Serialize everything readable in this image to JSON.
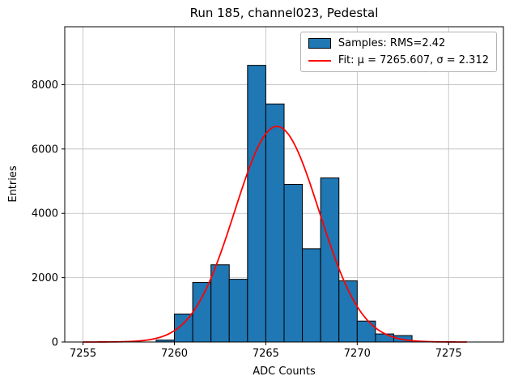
{
  "figure": {
    "background": "#ffffff"
  },
  "chart_data": {
    "type": "bar",
    "subtype": "histogram",
    "title": "Run 185, channel023, Pedestal",
    "xlabel": "ADC Counts",
    "ylabel": "Entries",
    "xlim": [
      7254,
      7278
    ],
    "ylim": [
      0,
      9800
    ],
    "xticks": [
      7255,
      7260,
      7265,
      7270,
      7275
    ],
    "yticks": [
      0,
      2000,
      4000,
      6000,
      8000
    ],
    "grid": true,
    "grid_color": "#bdbdbd",
    "bar_color": "#1f77b4",
    "bar_edge_color": "#000000",
    "bin_edges": [
      7259,
      7260,
      7261,
      7262,
      7263,
      7264,
      7265,
      7266,
      7267,
      7268,
      7269,
      7270,
      7271,
      7272,
      7273
    ],
    "counts": [
      60,
      870,
      1850,
      2400,
      1950,
      8600,
      7400,
      4900,
      2900,
      5100,
      1900,
      650,
      250,
      200
    ],
    "fit": {
      "type": "gaussian",
      "mu": 7265.607,
      "sigma": 2.312,
      "amplitude": 6700,
      "color": "#ff0000",
      "x_range": [
        7255,
        7276
      ]
    },
    "legend": {
      "position": "upper right",
      "items": [
        {
          "swatch": "patch",
          "color": "#1f77b4",
          "label": "Samples: RMS=2.42"
        },
        {
          "swatch": "line",
          "color": "#ff0000",
          "label": "Fit: μ = 7265.607, σ = 2.312"
        }
      ]
    }
  }
}
